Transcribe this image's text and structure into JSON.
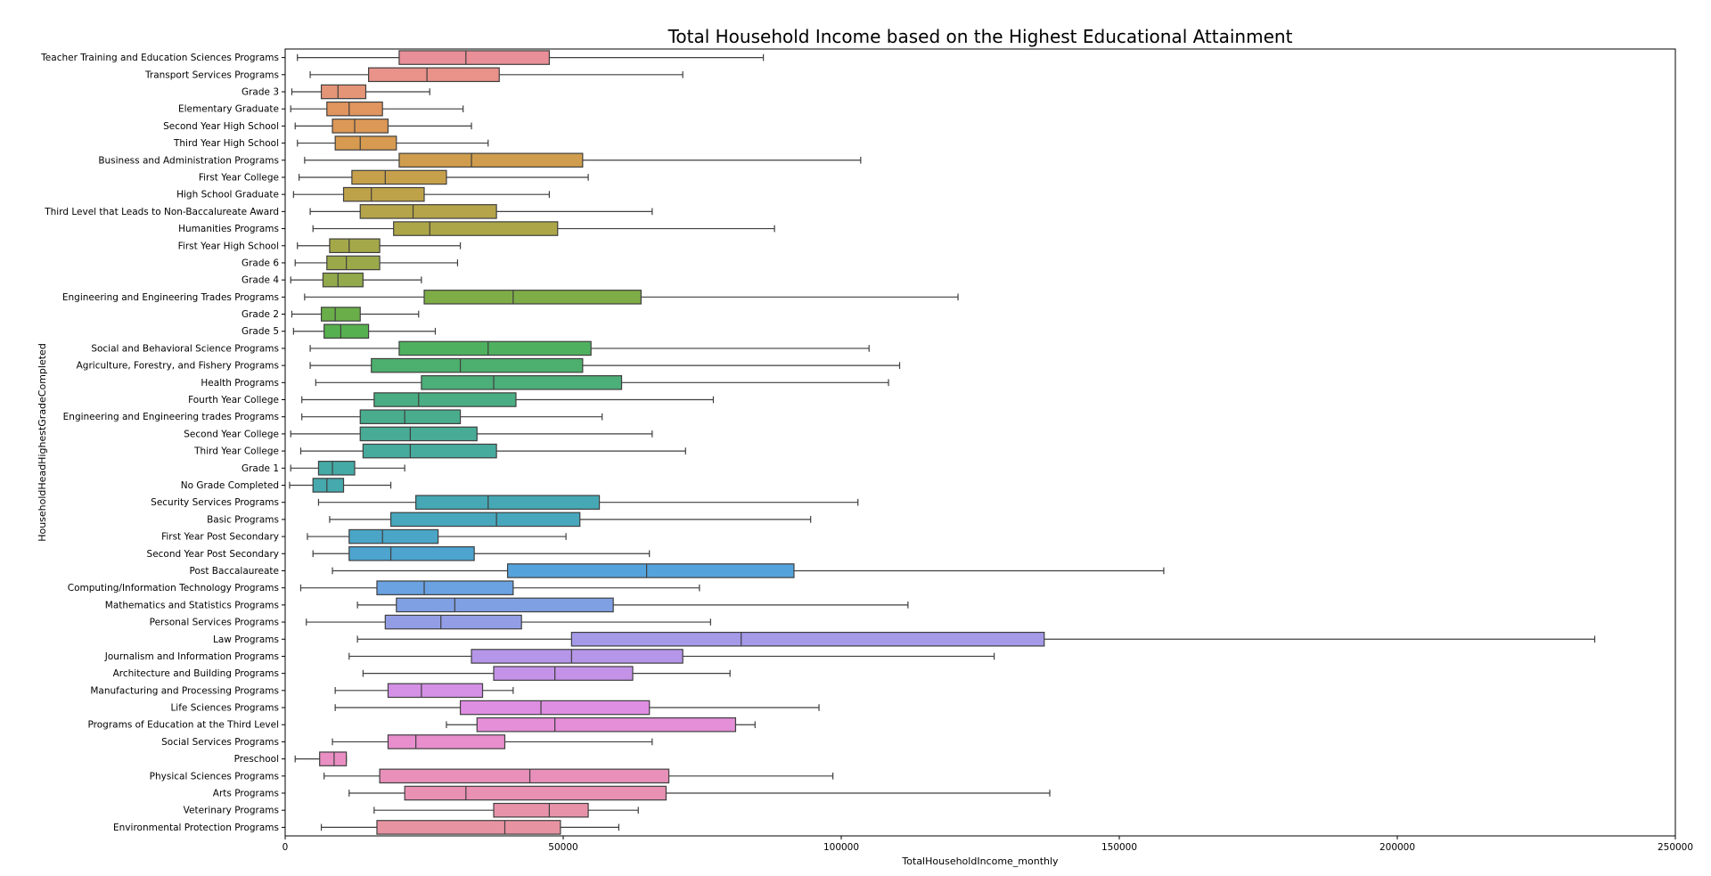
{
  "chart_data": {
    "type": "box",
    "orientation": "horizontal",
    "title": "Total Household Income based on the Highest Educational Attainment",
    "xlabel": "TotalHouseholdIncome_monthly",
    "ylabel": "HouseholdHeadHighestGradeCompleted",
    "xlim": [
      0,
      250000
    ],
    "xticks": [
      0,
      50000,
      100000,
      150000,
      200000,
      250000
    ],
    "grid": false,
    "categories": [
      {
        "label": "Teacher Training and Education Sciences Programs",
        "whisker_low": 2200,
        "q1": 20500,
        "median": 32500,
        "q3": 47500,
        "whisker_high": 86000,
        "color": "#e88f97"
      },
      {
        "label": "Transport Services Programs",
        "whisker_low": 4500,
        "q1": 15000,
        "median": 25500,
        "q3": 38500,
        "whisker_high": 71500,
        "color": "#e8928a"
      },
      {
        "label": "Grade 3",
        "whisker_low": 1200,
        "q1": 6500,
        "median": 9500,
        "q3": 14500,
        "whisker_high": 26000,
        "color": "#e49577"
      },
      {
        "label": "Elementary Graduate",
        "whisker_low": 1000,
        "q1": 7500,
        "median": 11500,
        "q3": 17500,
        "whisker_high": 32000,
        "color": "#e0955f"
      },
      {
        "label": "Second Year High School",
        "whisker_low": 1800,
        "q1": 8500,
        "median": 12500,
        "q3": 18500,
        "whisker_high": 33500,
        "color": "#dc9856"
      },
      {
        "label": "Third Year High School",
        "whisker_low": 2200,
        "q1": 9000,
        "median": 13500,
        "q3": 20000,
        "whisker_high": 36500,
        "color": "#d69a50"
      },
      {
        "label": "Business and Administration Programs",
        "whisker_low": 3500,
        "q1": 20500,
        "median": 33500,
        "q3": 53500,
        "whisker_high": 103500,
        "color": "#cf9d4d"
      },
      {
        "label": "First Year College",
        "whisker_low": 2500,
        "q1": 12000,
        "median": 18000,
        "q3": 29000,
        "whisker_high": 54500,
        "color": "#c7a04c"
      },
      {
        "label": "High School Graduate",
        "whisker_low": 1500,
        "q1": 10500,
        "median": 15500,
        "q3": 25000,
        "whisker_high": 47500,
        "color": "#bea24a"
      },
      {
        "label": "Third Level that Leads to Non-Baccalureate Award",
        "whisker_low": 4500,
        "q1": 13500,
        "median": 23000,
        "q3": 38000,
        "whisker_high": 66000,
        "color": "#b5a449"
      },
      {
        "label": "Humanities Programs",
        "whisker_low": 5000,
        "q1": 19500,
        "median": 26000,
        "q3": 49000,
        "whisker_high": 88000,
        "color": "#ada648"
      },
      {
        "label": "First Year High School",
        "whisker_low": 2200,
        "q1": 8000,
        "median": 11500,
        "q3": 17000,
        "whisker_high": 31500,
        "color": "#a5a849"
      },
      {
        "label": "Grade 6",
        "whisker_low": 1800,
        "q1": 7500,
        "median": 11000,
        "q3": 17000,
        "whisker_high": 31000,
        "color": "#9ca94a"
      },
      {
        "label": "Grade 4",
        "whisker_low": 1000,
        "q1": 6800,
        "median": 9500,
        "q3": 14000,
        "whisker_high": 24500,
        "color": "#92aa4b"
      },
      {
        "label": "Engineering and Engineering Trades Programs",
        "whisker_low": 3500,
        "q1": 25000,
        "median": 41000,
        "q3": 64000,
        "whisker_high": 121000,
        "color": "#7eac47"
      },
      {
        "label": "Grade 2",
        "whisker_low": 1200,
        "q1": 6500,
        "median": 9000,
        "q3": 13500,
        "whisker_high": 24000,
        "color": "#6aae49"
      },
      {
        "label": "Grade 5",
        "whisker_low": 1500,
        "q1": 7000,
        "median": 10000,
        "q3": 15000,
        "whisker_high": 27000,
        "color": "#57b04f"
      },
      {
        "label": "Social and Behavioral Science Programs",
        "whisker_low": 4500,
        "q1": 20500,
        "median": 36500,
        "q3": 55000,
        "whisker_high": 105000,
        "color": "#4fb15f"
      },
      {
        "label": "Agriculture, Forestry, and Fishery Programs",
        "whisker_low": 4500,
        "q1": 15500,
        "median": 31500,
        "q3": 53500,
        "whisker_high": 110500,
        "color": "#4daf6d"
      },
      {
        "label": "Health Programs",
        "whisker_low": 5500,
        "q1": 24500,
        "median": 37500,
        "q3": 60500,
        "whisker_high": 108500,
        "color": "#4cae79"
      },
      {
        "label": "Fourth Year College",
        "whisker_low": 3000,
        "q1": 16000,
        "median": 24000,
        "q3": 41500,
        "whisker_high": 77000,
        "color": "#4aad83"
      },
      {
        "label": "Engineering and Engineering trades Programs",
        "whisker_low": 3000,
        "q1": 13500,
        "median": 21500,
        "q3": 31500,
        "whisker_high": 57000,
        "color": "#48ac8d"
      },
      {
        "label": "Second Year College",
        "whisker_low": 1000,
        "q1": 13500,
        "median": 22500,
        "q3": 34500,
        "whisker_high": 66000,
        "color": "#47ab95"
      },
      {
        "label": "Third Year College",
        "whisker_low": 2800,
        "q1": 14000,
        "median": 22500,
        "q3": 38000,
        "whisker_high": 72000,
        "color": "#46aa9d"
      },
      {
        "label": "Grade 1",
        "whisker_low": 1000,
        "q1": 6000,
        "median": 8500,
        "q3": 12500,
        "whisker_high": 21500,
        "color": "#45aaa5"
      },
      {
        "label": "No Grade Completed",
        "whisker_low": 800,
        "q1": 5000,
        "median": 7500,
        "q3": 10500,
        "whisker_high": 19000,
        "color": "#45a9ad"
      },
      {
        "label": "Security Services Programs",
        "whisker_low": 6000,
        "q1": 23500,
        "median": 36500,
        "q3": 56500,
        "whisker_high": 103000,
        "color": "#46a8b5"
      },
      {
        "label": "Basic Programs",
        "whisker_low": 8000,
        "q1": 19000,
        "median": 38000,
        "q3": 53000,
        "whisker_high": 94500,
        "color": "#48a7bd"
      },
      {
        "label": "First Year Post Secondary",
        "whisker_low": 4000,
        "q1": 11500,
        "median": 17500,
        "q3": 27500,
        "whisker_high": 50500,
        "color": "#4aa5c6"
      },
      {
        "label": "Second Year Post Secondary",
        "whisker_low": 5000,
        "q1": 11500,
        "median": 19000,
        "q3": 34000,
        "whisker_high": 65500,
        "color": "#4da4cf"
      },
      {
        "label": "Post Baccalaureate",
        "whisker_low": 8500,
        "q1": 40000,
        "median": 65000,
        "q3": 91500,
        "whisker_high": 158000,
        "color": "#55a3dc"
      },
      {
        "label": "Computing/Information Technology Programs",
        "whisker_low": 2800,
        "q1": 16500,
        "median": 25000,
        "q3": 41000,
        "whisker_high": 74500,
        "color": "#6aa2e2"
      },
      {
        "label": "Mathematics and Statistics Programs",
        "whisker_low": 13000,
        "q1": 20000,
        "median": 30500,
        "q3": 59000,
        "whisker_high": 112000,
        "color": "#80a0e4"
      },
      {
        "label": "Personal Services Programs",
        "whisker_low": 3800,
        "q1": 18000,
        "median": 28000,
        "q3": 42500,
        "whisker_high": 76500,
        "color": "#939de6"
      },
      {
        "label": "Law Programs",
        "whisker_low": 13000,
        "q1": 51500,
        "median": 82000,
        "q3": 136500,
        "whisker_high": 235500,
        "color": "#a49ae8"
      },
      {
        "label": "Journalism and Information Programs",
        "whisker_low": 11500,
        "q1": 33500,
        "median": 51500,
        "q3": 71500,
        "whisker_high": 127500,
        "color": "#b596e8"
      },
      {
        "label": "Architecture and Building Programs",
        "whisker_low": 14000,
        "q1": 37500,
        "median": 48500,
        "q3": 62500,
        "whisker_high": 80000,
        "color": "#c493e7"
      },
      {
        "label": "Manufacturing and Processing Programs",
        "whisker_low": 9000,
        "q1": 18500,
        "median": 24500,
        "q3": 35500,
        "whisker_high": 41000,
        "color": "#d390e5"
      },
      {
        "label": "Life Sciences Programs",
        "whisker_low": 9000,
        "q1": 31500,
        "median": 46000,
        "q3": 65500,
        "whisker_high": 96000,
        "color": "#df8fe2"
      },
      {
        "label": "Programs of Education at the Third Level",
        "whisker_low": 29000,
        "q1": 34500,
        "median": 48500,
        "q3": 81000,
        "whisker_high": 84500,
        "color": "#e58fd8"
      },
      {
        "label": "Social Services Programs",
        "whisker_low": 8500,
        "q1": 18500,
        "median": 23500,
        "q3": 39500,
        "whisker_high": 66000,
        "color": "#e88ecd"
      },
      {
        "label": "Preschool",
        "whisker_low": 1800,
        "q1": 6200,
        "median": 8800,
        "q3": 11000,
        "whisker_high": 11000,
        "color": "#e98fc3"
      },
      {
        "label": "Physical Sciences Programs",
        "whisker_low": 7000,
        "q1": 17000,
        "median": 44000,
        "q3": 69000,
        "whisker_high": 98500,
        "color": "#e990ba"
      },
      {
        "label": "Arts Programs",
        "whisker_low": 11500,
        "q1": 21500,
        "median": 32500,
        "q3": 68500,
        "whisker_high": 137500,
        "color": "#e891b2"
      },
      {
        "label": "Veterinary Programs",
        "whisker_low": 16000,
        "q1": 37500,
        "median": 47500,
        "q3": 54500,
        "whisker_high": 63500,
        "color": "#e892aa"
      },
      {
        "label": "Environmental Protection Programs",
        "whisker_low": 6500,
        "q1": 16500,
        "median": 39500,
        "q3": 49500,
        "whisker_high": 60000,
        "color": "#e893a2"
      }
    ]
  }
}
